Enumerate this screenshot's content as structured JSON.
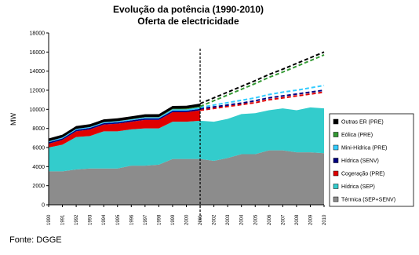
{
  "chart_data": {
    "type": "stacked-area",
    "title": "Evolução da potência (1990-2010)",
    "subtitle": "Oferta de electricidade",
    "y_label": "MW",
    "source": "Fonte: DGGE",
    "categories": [
      "1990",
      "1991",
      "1992",
      "1993",
      "1994",
      "1995",
      "1996",
      "1997",
      "1998",
      "1999",
      "2000",
      "2001",
      "2002",
      "2003",
      "2004",
      "2005",
      "2006",
      "2007",
      "2008",
      "2009",
      "2010"
    ],
    "divider": "2001",
    "ylim": [
      0,
      18000
    ],
    "yticks": [
      0,
      2000,
      4000,
      6000,
      8000,
      10000,
      12000,
      14000,
      16000,
      18000
    ],
    "series": [
      {
        "name": "Térmica (SEP+SENV)",
        "color": "#8c8c8c",
        "style": "area",
        "values": [
          3500,
          3500,
          3700,
          3800,
          3800,
          3800,
          4100,
          4100,
          4200,
          4800,
          4800,
          4800,
          4600,
          4900,
          5300,
          5300,
          5700,
          5700,
          5500,
          5500,
          5400
        ]
      },
      {
        "name": "Hídrica (SEP)",
        "color": "#33cccc",
        "style": "area",
        "values": [
          2500,
          2800,
          3400,
          3400,
          3900,
          3900,
          3800,
          3900,
          3800,
          3900,
          3900,
          4000,
          4100,
          4100,
          4200,
          4300,
          4200,
          4400,
          4400,
          4700,
          4700
        ]
      },
      {
        "name": "Cogeração (PRE)",
        "color": "#e00000",
        "style": "area-dashed",
        "values": [
          400,
          500,
          600,
          700,
          700,
          800,
          800,
          900,
          900,
          1000,
          1000,
          1100,
          1400,
          1300,
          1000,
          1100,
          1100,
          1100,
          1500,
          1400,
          1700
        ]
      },
      {
        "name": "Hídrica (SENV)",
        "color": "#000080",
        "style": "area-dashed",
        "values": [
          150,
          150,
          150,
          150,
          150,
          150,
          150,
          150,
          150,
          150,
          150,
          150,
          150,
          150,
          150,
          200,
          200,
          200,
          200,
          200,
          200
        ]
      },
      {
        "name": "Mini-Hídrica (PRE)",
        "color": "#33ccff",
        "style": "area-dashed",
        "values": [
          100,
          100,
          100,
          100,
          100,
          100,
          100,
          100,
          100,
          150,
          150,
          150,
          200,
          250,
          300,
          300,
          350,
          400,
          400,
          450,
          500
        ]
      },
      {
        "name": "Eólica (PRE)",
        "color": "#339933",
        "style": "area-dashed",
        "values": [
          0,
          0,
          0,
          0,
          0,
          10,
          20,
          30,
          40,
          60,
          80,
          100,
          450,
          800,
          1150,
          1500,
          1800,
          2100,
          2500,
          2850,
          3200
        ]
      },
      {
        "name": "Outras ER (PRE)",
        "color": "#000000",
        "style": "area-dashed",
        "values": [
          300,
          300,
          300,
          300,
          300,
          300,
          300,
          300,
          300,
          300,
          300,
          300,
          300,
          300,
          300,
          300,
          300,
          300,
          300,
          300,
          300
        ]
      }
    ]
  }
}
